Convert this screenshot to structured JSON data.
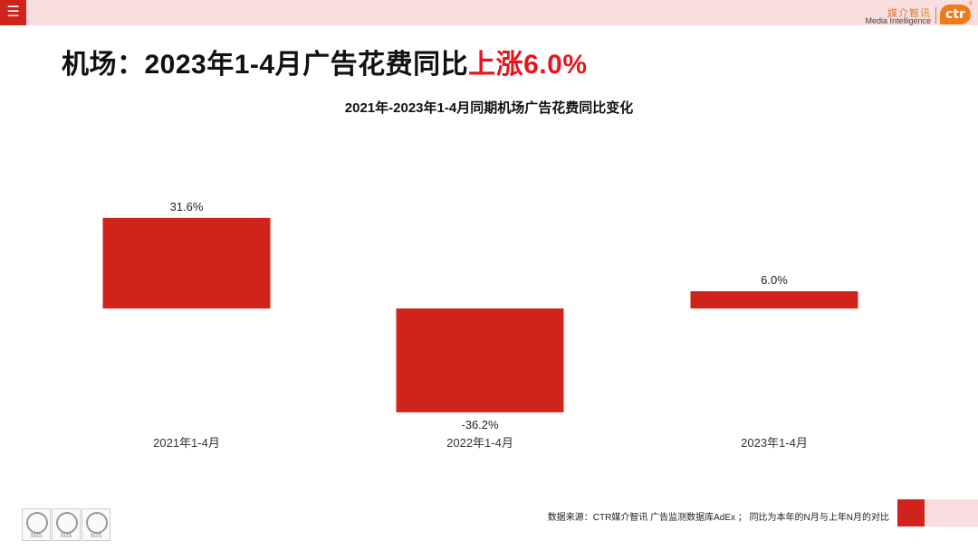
{
  "header": {
    "menu_icon": "hamburger-icon",
    "brand_cn": "媒介智讯",
    "brand_en": "Media Intelligence",
    "brand_logo": "ctr",
    "brand_reg": "®"
  },
  "title": {
    "main": "机场：2023年1-4月广告花费同比",
    "accent": "上涨6.0%"
  },
  "colors": {
    "accent": "#e8141b",
    "bar": "#d0231c",
    "topbar": "#f8dede"
  },
  "chart_data": {
    "type": "bar",
    "title": "2021年-2023年1-4月同期机场广告花费同比变化",
    "categories": [
      "2021年1-4月",
      "2022年1-4月",
      "2023年1-4月"
    ],
    "values": [
      31.6,
      -36.2,
      6.0
    ],
    "value_labels": [
      "31.6%",
      "-36.2%",
      "6.0%"
    ],
    "xlabel": "",
    "ylabel": "",
    "grid": false,
    "legend": "none"
  },
  "footer": {
    "certifications": [
      "SGS",
      "SGS",
      "SGS"
    ],
    "source": "数据来源：CTR媒介智讯 广告监测数据库AdEx ；  同比为本年的N月与上年N月的对比"
  }
}
